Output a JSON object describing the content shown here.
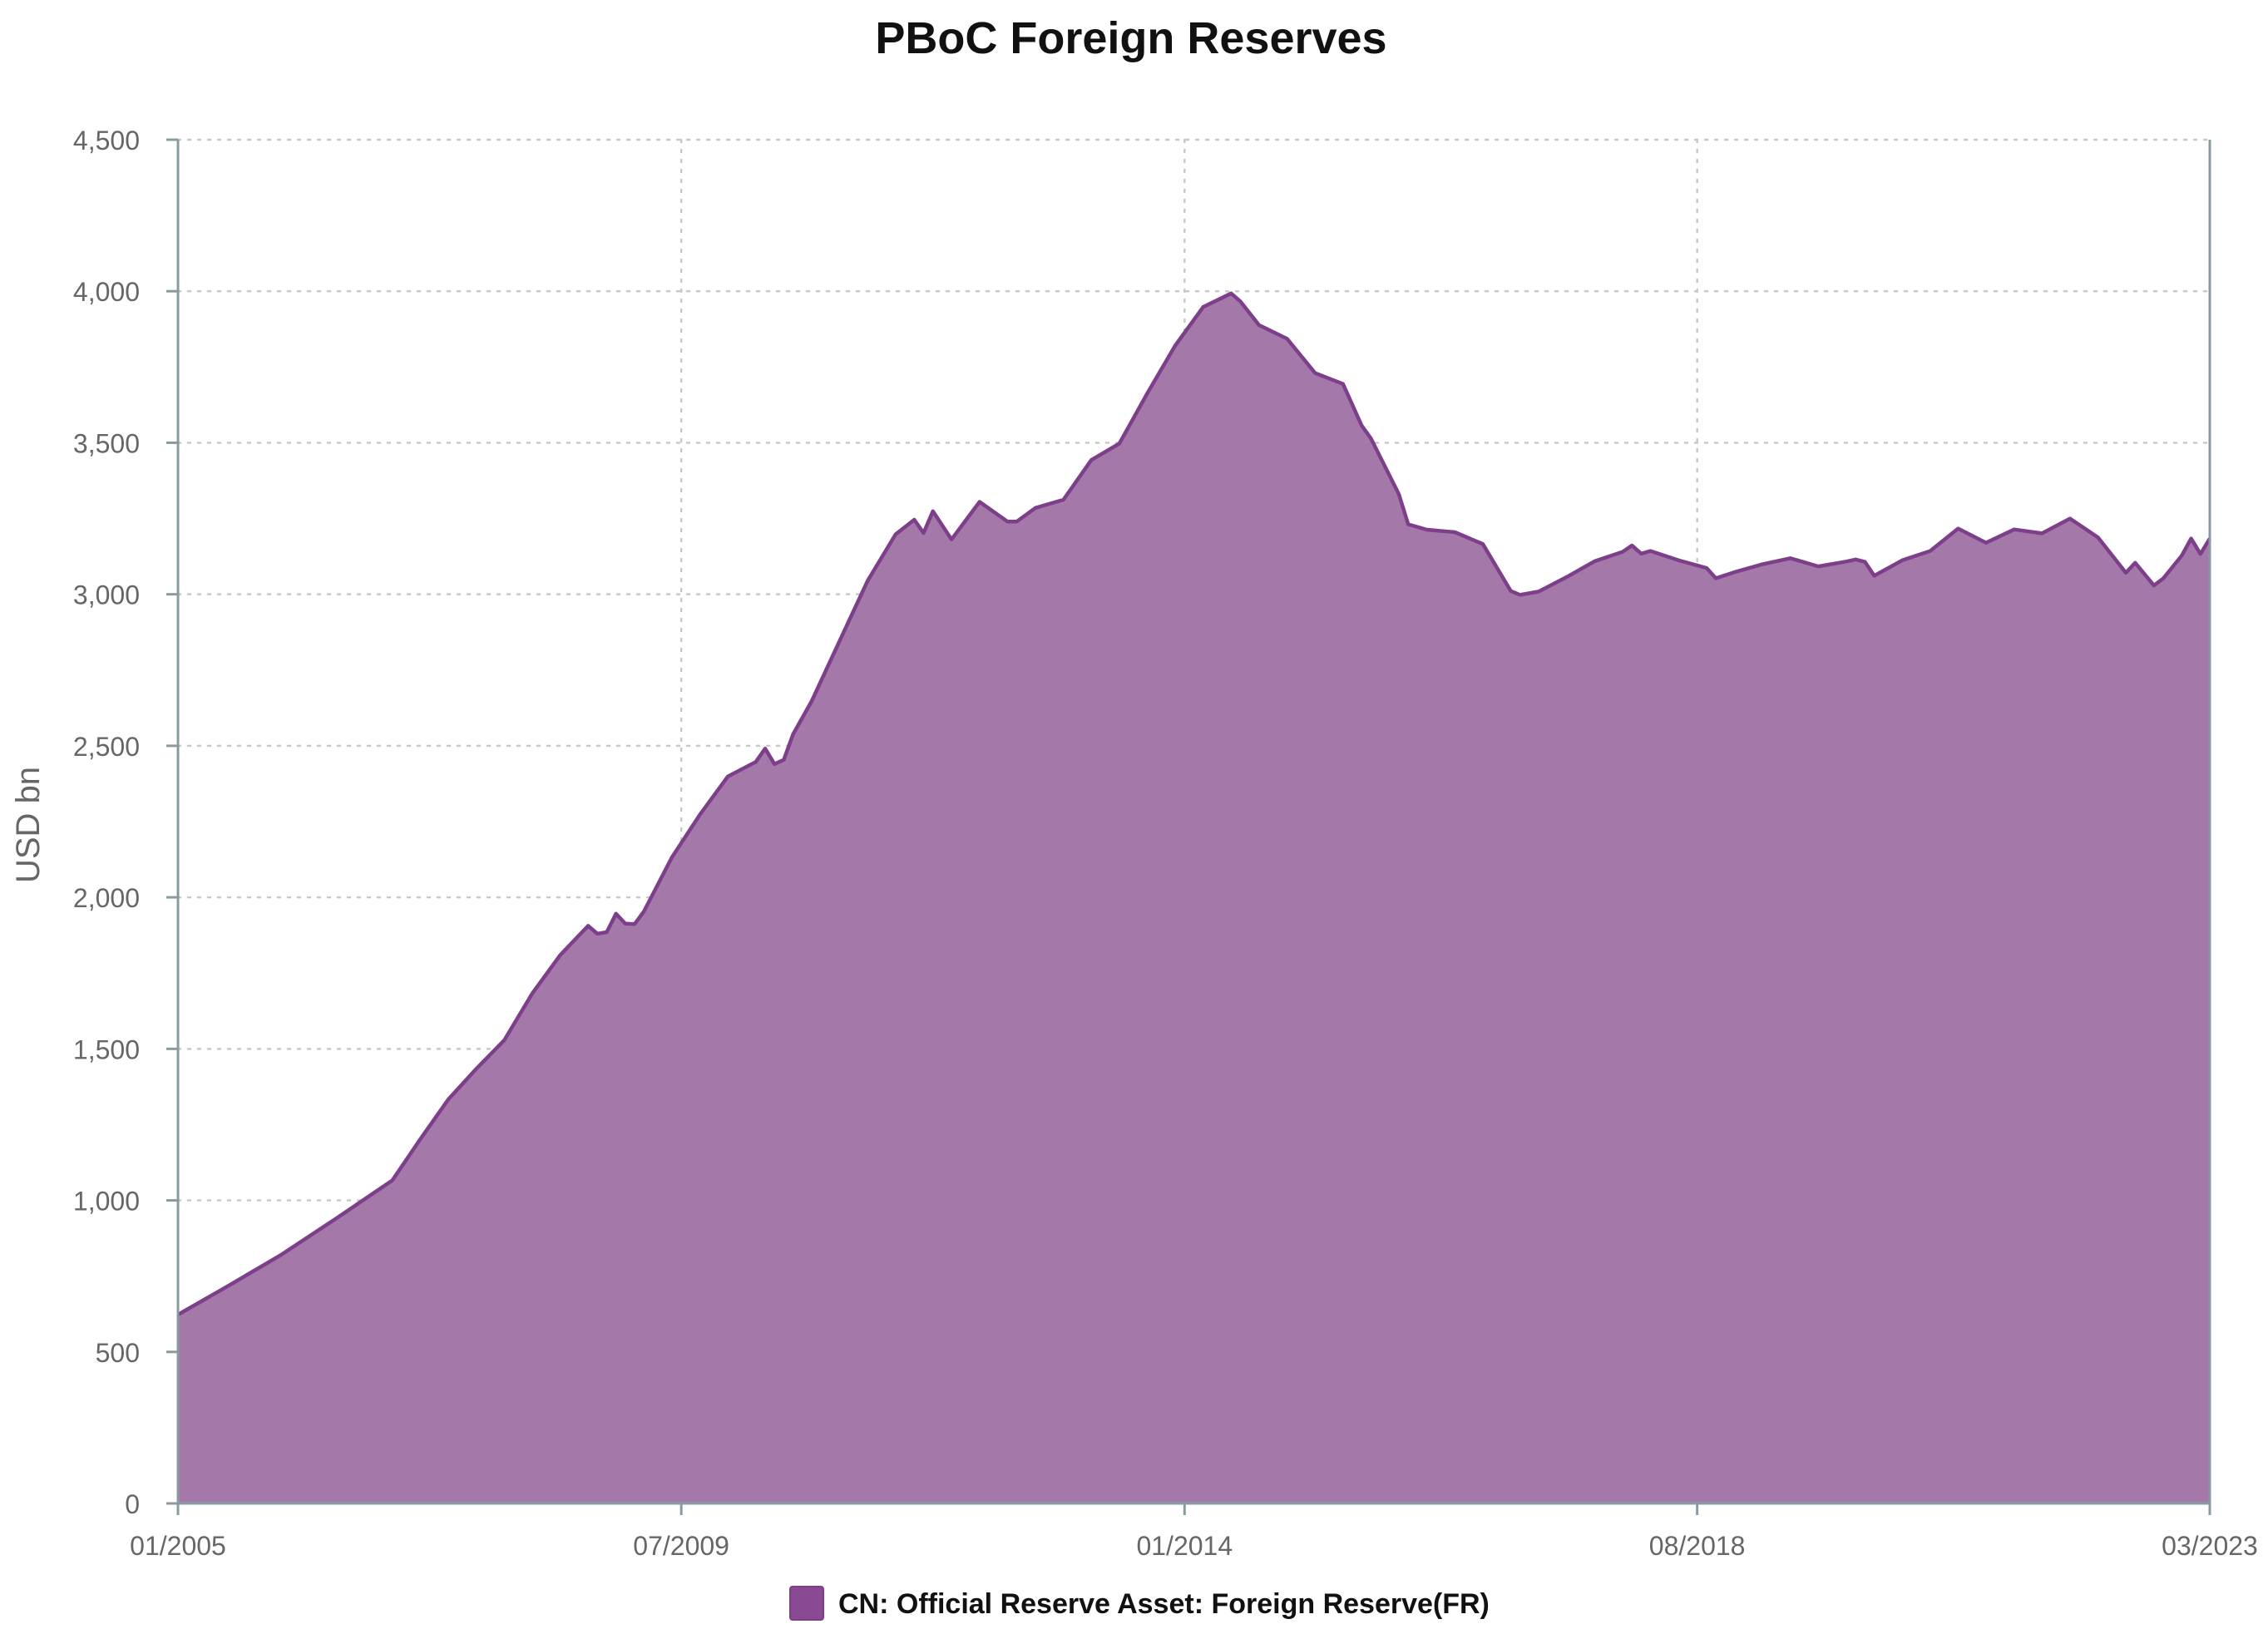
{
  "chart_data": {
    "type": "area",
    "title": "PBoC Foreign Reserves",
    "xlabel": "",
    "ylabel": "USD bn",
    "ylim": [
      0,
      4500
    ],
    "yticks": [
      0,
      500,
      1000,
      1500,
      2000,
      2500,
      3000,
      3500,
      4000,
      4500
    ],
    "ytick_labels": [
      "0",
      "500",
      "1,000",
      "1,500",
      "2,000",
      "2,500",
      "3,000",
      "3,500",
      "4,000",
      "4,500"
    ],
    "xlim": [
      "01/2005",
      "03/2023"
    ],
    "xtick_labels": [
      "01/2005",
      "07/2009",
      "01/2014",
      "08/2018",
      "03/2023"
    ],
    "grid": true,
    "legend_position": "bottom-center",
    "colors": {
      "fill": "#a479aa",
      "line": "#7e3f8a",
      "legend": "#8a4a93"
    },
    "series": [
      {
        "name": "CN: Official Reserve Asset: Foreign Reserve(FR)",
        "points": [
          [
            "2005-01",
            623
          ],
          [
            "2005-06",
            711
          ],
          [
            "2005-12",
            819
          ],
          [
            "2006-06",
            941
          ],
          [
            "2006-12",
            1066
          ],
          [
            "2007-03",
            1202
          ],
          [
            "2007-06",
            1333
          ],
          [
            "2007-09",
            1434
          ],
          [
            "2007-12",
            1528
          ],
          [
            "2008-03",
            1682
          ],
          [
            "2008-06",
            1809
          ],
          [
            "2008-09",
            1906
          ],
          [
            "2008-10",
            1880
          ],
          [
            "2008-11",
            1885
          ],
          [
            "2008-12",
            1946
          ],
          [
            "2009-01",
            1913
          ],
          [
            "2009-02",
            1912
          ],
          [
            "2009-03",
            1954
          ],
          [
            "2009-06",
            2132
          ],
          [
            "2009-09",
            2273
          ],
          [
            "2009-12",
            2399
          ],
          [
            "2010-03",
            2447
          ],
          [
            "2010-04",
            2491
          ],
          [
            "2010-05",
            2440
          ],
          [
            "2010-06",
            2454
          ],
          [
            "2010-07",
            2538
          ],
          [
            "2010-09",
            2648
          ],
          [
            "2010-12",
            2847
          ],
          [
            "2011-03",
            3045
          ],
          [
            "2011-06",
            3198
          ],
          [
            "2011-08",
            3246
          ],
          [
            "2011-09",
            3202
          ],
          [
            "2011-10",
            3274
          ],
          [
            "2011-12",
            3181
          ],
          [
            "2012-03",
            3305
          ],
          [
            "2012-06",
            3240
          ],
          [
            "2012-07",
            3240
          ],
          [
            "2012-09",
            3285
          ],
          [
            "2012-12",
            3312
          ],
          [
            "2013-03",
            3443
          ],
          [
            "2013-06",
            3497
          ],
          [
            "2013-09",
            3663
          ],
          [
            "2013-12",
            3821
          ],
          [
            "2014-03",
            3948
          ],
          [
            "2014-06",
            3993
          ],
          [
            "2014-07",
            3966
          ],
          [
            "2014-09",
            3888
          ],
          [
            "2014-12",
            3843
          ],
          [
            "2015-03",
            3730
          ],
          [
            "2015-06",
            3694
          ],
          [
            "2015-08",
            3557
          ],
          [
            "2015-09",
            3514
          ],
          [
            "2015-12",
            3330
          ],
          [
            "2016-01",
            3231
          ],
          [
            "2016-03",
            3213
          ],
          [
            "2016-06",
            3205
          ],
          [
            "2016-09",
            3166
          ],
          [
            "2016-12",
            3011
          ],
          [
            "2017-01",
            2998
          ],
          [
            "2017-03",
            3009
          ],
          [
            "2017-06",
            3057
          ],
          [
            "2017-09",
            3109
          ],
          [
            "2017-12",
            3140
          ],
          [
            "2018-01",
            3161
          ],
          [
            "2018-02",
            3134
          ],
          [
            "2018-03",
            3143
          ],
          [
            "2018-06",
            3112
          ],
          [
            "2018-09",
            3087
          ],
          [
            "2018-10",
            3053
          ],
          [
            "2018-12",
            3073
          ],
          [
            "2019-03",
            3099
          ],
          [
            "2019-06",
            3119
          ],
          [
            "2019-09",
            3092
          ],
          [
            "2019-12",
            3108
          ],
          [
            "2020-01",
            3115
          ],
          [
            "2020-02",
            3107
          ],
          [
            "2020-03",
            3061
          ],
          [
            "2020-06",
            3112
          ],
          [
            "2020-09",
            3143
          ],
          [
            "2020-12",
            3217
          ],
          [
            "2021-03",
            3170
          ],
          [
            "2021-06",
            3214
          ],
          [
            "2021-09",
            3201
          ],
          [
            "2021-12",
            3250
          ],
          [
            "2022-03",
            3188
          ],
          [
            "2022-06",
            3071
          ],
          [
            "2022-07",
            3104
          ],
          [
            "2022-09",
            3029
          ],
          [
            "2022-10",
            3052
          ],
          [
            "2022-12",
            3128
          ],
          [
            "2023-01",
            3184
          ],
          [
            "2023-02",
            3133
          ],
          [
            "2023-03",
            3184
          ]
        ]
      }
    ]
  }
}
